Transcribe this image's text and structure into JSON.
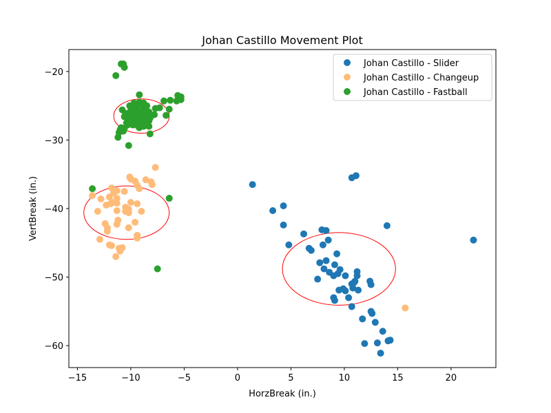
{
  "chart_data": {
    "type": "scatter",
    "title": "Johan Castillo Movement Plot",
    "xlabel": "HorzBreak (in.)",
    "ylabel": "VertBreak (in.)",
    "xlim": [
      -15.8,
      24.2
    ],
    "ylim": [
      -63.2,
      -16.8
    ],
    "xticks": [
      -15,
      -10,
      -5,
      0,
      5,
      10,
      15,
      20
    ],
    "yticks": [
      -60,
      -50,
      -40,
      -30,
      -20
    ],
    "grid": false,
    "legend_position": "top-right",
    "series": [
      {
        "name": "Johan Castillo - Slider",
        "color": "#1f77b4",
        "points": [
          [
            1.4,
            -36.5
          ],
          [
            10.7,
            -35.5
          ],
          [
            11.1,
            -35.2
          ],
          [
            3.3,
            -40.3
          ],
          [
            4.3,
            -39.6
          ],
          [
            4.3,
            -42.4
          ],
          [
            6.2,
            -43.7
          ],
          [
            7.9,
            -43.1
          ],
          [
            8.3,
            -43.2
          ],
          [
            8.5,
            -44.6
          ],
          [
            4.8,
            -45.3
          ],
          [
            6.7,
            -45.8
          ],
          [
            6.9,
            -46.1
          ],
          [
            8.0,
            -45.3
          ],
          [
            9.3,
            -46.6
          ],
          [
            7.7,
            -47.9
          ],
          [
            8.3,
            -47.6
          ],
          [
            9.1,
            -48.2
          ],
          [
            8.1,
            -48.8
          ],
          [
            8.6,
            -49.3
          ],
          [
            9.0,
            -49.8
          ],
          [
            9.4,
            -49.5
          ],
          [
            9.6,
            -48.9
          ],
          [
            10.1,
            -49.8
          ],
          [
            11.2,
            -49.2
          ],
          [
            11.2,
            -49.8
          ],
          [
            7.5,
            -50.3
          ],
          [
            10.7,
            -51.0
          ],
          [
            10.9,
            -50.8
          ],
          [
            11.0,
            -50.6
          ],
          [
            10.8,
            -51.6
          ],
          [
            9.9,
            -51.7
          ],
          [
            9.5,
            -51.9
          ],
          [
            10.1,
            -52.0
          ],
          [
            11.3,
            -51.9
          ],
          [
            12.4,
            -50.6
          ],
          [
            12.5,
            -51.1
          ],
          [
            9.0,
            -53.0
          ],
          [
            9.1,
            -53.4
          ],
          [
            10.4,
            -53.0
          ],
          [
            10.7,
            -54.3
          ],
          [
            12.5,
            -55.0
          ],
          [
            12.6,
            -55.3
          ],
          [
            12.9,
            -56.6
          ],
          [
            11.7,
            -56.1
          ],
          [
            13.6,
            -57.9
          ],
          [
            14.1,
            -59.3
          ],
          [
            14.3,
            -59.2
          ],
          [
            11.9,
            -59.7
          ],
          [
            13.1,
            -59.6
          ],
          [
            13.4,
            -61.1
          ],
          [
            14.0,
            -42.5
          ],
          [
            22.1,
            -44.6
          ]
        ]
      },
      {
        "name": "Johan Castillo - Changeup",
        "color": "#ffbb78",
        "points": [
          [
            -7.7,
            -34.0
          ],
          [
            -10.1,
            -35.4
          ],
          [
            -10.0,
            -35.7
          ],
          [
            -9.6,
            -36.0
          ],
          [
            -8.6,
            -35.8
          ],
          [
            -8.1,
            -36.1
          ],
          [
            -8.0,
            -36.5
          ],
          [
            -9.4,
            -36.6
          ],
          [
            -9.2,
            -37.1
          ],
          [
            -11.3,
            -37.4
          ],
          [
            -10.6,
            -37.5
          ],
          [
            -11.8,
            -37.0
          ],
          [
            -11.6,
            -37.7
          ],
          [
            -13.6,
            -38.1
          ],
          [
            -12.0,
            -38.3
          ],
          [
            -11.3,
            -38.5
          ],
          [
            -12.8,
            -38.6
          ],
          [
            -11.7,
            -39.1
          ],
          [
            -11.9,
            -39.3
          ],
          [
            -11.3,
            -39.2
          ],
          [
            -12.3,
            -39.5
          ],
          [
            -10.0,
            -39.1
          ],
          [
            -9.4,
            -39.3
          ],
          [
            -10.5,
            -39.8
          ],
          [
            -11.3,
            -40.3
          ],
          [
            -10.2,
            -40.1
          ],
          [
            -10.5,
            -40.4
          ],
          [
            -10.2,
            -40.6
          ],
          [
            -9.0,
            -40.4
          ],
          [
            -13.1,
            -40.4
          ],
          [
            -11.2,
            -41.7
          ],
          [
            -11.3,
            -42.3
          ],
          [
            -9.6,
            -42.0
          ],
          [
            -12.4,
            -42.2
          ],
          [
            -12.2,
            -42.8
          ],
          [
            -12.2,
            -43.3
          ],
          [
            -10.2,
            -42.8
          ],
          [
            -9.4,
            -43.9
          ],
          [
            -9.4,
            -44.3
          ],
          [
            -12.9,
            -44.5
          ],
          [
            -12.0,
            -45.3
          ],
          [
            -11.8,
            -45.4
          ],
          [
            -11.1,
            -45.8
          ],
          [
            -10.8,
            -45.7
          ],
          [
            -11.0,
            -46.2
          ],
          [
            -11.4,
            -47.0
          ],
          [
            15.7,
            -54.5
          ]
        ]
      },
      {
        "name": "Johan Castillo - Fastball",
        "color": "#2ca02c",
        "points": [
          [
            -10.9,
            -18.9
          ],
          [
            -10.7,
            -18.9
          ],
          [
            -10.6,
            -19.4
          ],
          [
            -11.4,
            -20.6
          ],
          [
            -9.2,
            -23.4
          ],
          [
            -5.6,
            -23.5
          ],
          [
            -5.3,
            -23.7
          ],
          [
            -6.9,
            -24.3
          ],
          [
            -6.3,
            -24.2
          ],
          [
            -5.7,
            -24.3
          ],
          [
            -5.3,
            -24.1
          ],
          [
            -9.7,
            -24.6
          ],
          [
            -9.2,
            -24.5
          ],
          [
            -8.8,
            -24.6
          ],
          [
            -9.3,
            -24.9
          ],
          [
            -9.0,
            -25.0
          ],
          [
            -8.5,
            -25.0
          ],
          [
            -10.1,
            -25.0
          ],
          [
            -9.9,
            -25.3
          ],
          [
            -9.5,
            -25.3
          ],
          [
            -8.6,
            -25.4
          ],
          [
            -7.7,
            -25.4
          ],
          [
            -7.3,
            -25.3
          ],
          [
            -10.8,
            -25.6
          ],
          [
            -10.0,
            -25.6
          ],
          [
            -9.7,
            -25.7
          ],
          [
            -9.3,
            -25.9
          ],
          [
            -8.9,
            -25.8
          ],
          [
            -6.4,
            -25.5
          ],
          [
            -8.3,
            -25.9
          ],
          [
            -10.5,
            -26.1
          ],
          [
            -10.0,
            -26.2
          ],
          [
            -9.6,
            -26.2
          ],
          [
            -9.0,
            -26.1
          ],
          [
            -8.7,
            -26.4
          ],
          [
            -8.3,
            -26.2
          ],
          [
            -7.8,
            -26.3
          ],
          [
            -6.7,
            -26.4
          ],
          [
            -10.6,
            -26.6
          ],
          [
            -10.2,
            -26.6
          ],
          [
            -9.7,
            -26.7
          ],
          [
            -9.2,
            -26.8
          ],
          [
            -8.7,
            -26.8
          ],
          [
            -8.2,
            -26.8
          ],
          [
            -10.0,
            -27.0
          ],
          [
            -9.6,
            -27.2
          ],
          [
            -9.1,
            -27.2
          ],
          [
            -8.7,
            -27.3
          ],
          [
            -8.3,
            -27.2
          ],
          [
            -10.4,
            -27.5
          ],
          [
            -9.5,
            -27.6
          ],
          [
            -9.1,
            -27.7
          ],
          [
            -8.5,
            -27.7
          ],
          [
            -10.3,
            -27.8
          ],
          [
            -9.8,
            -27.8
          ],
          [
            -9.3,
            -28.0
          ],
          [
            -8.8,
            -28.0
          ],
          [
            -8.3,
            -28.0
          ],
          [
            -10.9,
            -28.2
          ],
          [
            -9.2,
            -28.2
          ],
          [
            -11.0,
            -28.5
          ],
          [
            -10.6,
            -28.3
          ],
          [
            -11.1,
            -28.9
          ],
          [
            -10.7,
            -28.7
          ],
          [
            -8.2,
            -29.1
          ],
          [
            -11.2,
            -29.6
          ],
          [
            -10.2,
            -30.8
          ],
          [
            -13.6,
            -37.1
          ],
          [
            -6.4,
            -38.5
          ],
          [
            -7.5,
            -48.8
          ]
        ]
      }
    ],
    "ellipses": [
      {
        "cx": -9.0,
        "cy": -26.5,
        "rx": 2.6,
        "ry": 2.5,
        "color": "#ff0000"
      },
      {
        "cx": -10.4,
        "cy": -40.6,
        "rx": 4.0,
        "ry": 3.9,
        "color": "#ff0000"
      },
      {
        "cx": 9.5,
        "cy": -48.8,
        "rx": 5.3,
        "ry": 5.3,
        "color": "#ff0000"
      }
    ]
  }
}
